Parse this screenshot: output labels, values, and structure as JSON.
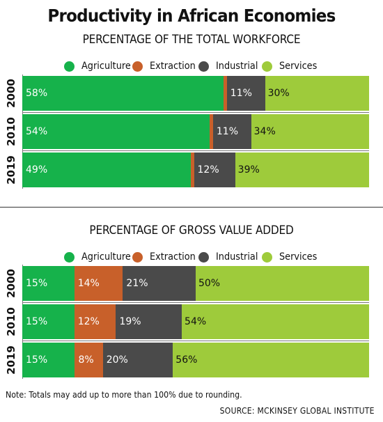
{
  "title": "Productivity in African Economies",
  "note": "Note: Totals may add up to more than 100% due to rounding.",
  "source": "SOURCE: MCKINSEY GLOBAL INSTITUTE",
  "colors": {
    "Agriculture": "#16b24b",
    "Extraction": "#c8602a",
    "Industrial": "#4a4a4a",
    "Services": "#9ecb3b"
  },
  "legend": [
    "Agriculture",
    "Extraction",
    "Industrial",
    "Services"
  ],
  "chart_data": [
    {
      "type": "bar",
      "stacked": true,
      "orientation": "horizontal",
      "title": "PERCENTAGE OF THE TOTAL WORKFORCE",
      "categories": [
        "2000",
        "2010",
        "2019"
      ],
      "series": [
        {
          "name": "Agriculture",
          "values": [
            58,
            54,
            49
          ]
        },
        {
          "name": "Extraction",
          "values": [
            1,
            1,
            1
          ]
        },
        {
          "name": "Industrial",
          "values": [
            11,
            11,
            12
          ]
        },
        {
          "name": "Services",
          "values": [
            30,
            34,
            39
          ]
        }
      ],
      "labels": [
        [
          "58%",
          "",
          "11%",
          "30%"
        ],
        [
          "54%",
          "",
          "11%",
          "34%"
        ],
        [
          "49%",
          "",
          "12%",
          "39%"
        ]
      ],
      "legend_position": "top"
    },
    {
      "type": "bar",
      "stacked": true,
      "orientation": "horizontal",
      "title": "PERCENTAGE OF GROSS VALUE ADDED",
      "categories": [
        "2000",
        "2010",
        "2019"
      ],
      "series": [
        {
          "name": "Agriculture",
          "values": [
            15,
            15,
            15
          ]
        },
        {
          "name": "Extraction",
          "values": [
            14,
            12,
            8
          ]
        },
        {
          "name": "Industrial",
          "values": [
            21,
            19,
            20
          ]
        },
        {
          "name": "Services",
          "values": [
            50,
            54,
            56
          ]
        }
      ],
      "labels": [
        [
          "15%",
          "14%",
          "21%",
          "50%"
        ],
        [
          "15%",
          "12%",
          "19%",
          "54%"
        ],
        [
          "15%",
          "8%",
          "20%",
          "56%"
        ]
      ],
      "legend_position": "top"
    }
  ]
}
